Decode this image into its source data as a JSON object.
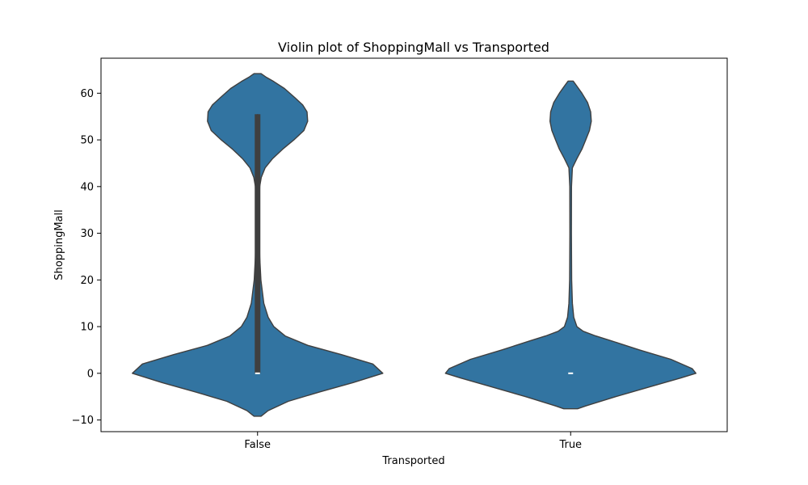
{
  "chart_data": {
    "type": "violin",
    "title": "Violin plot of ShoppingMall vs Transported",
    "xlabel": "Transported",
    "ylabel": "ShoppingMall",
    "categories": [
      "False",
      "True"
    ],
    "ylim": [
      -12.5,
      67.5
    ],
    "yticks": [
      -10,
      0,
      10,
      20,
      30,
      40,
      50,
      60
    ],
    "grid": false,
    "colors": {
      "violin_fill": "#3274a1",
      "outline": "#3f3f3f",
      "box": "#3f3f3f",
      "median": "#ffffff"
    },
    "violins": [
      {
        "category": "False",
        "min": -9.2,
        "max": 64.2,
        "q1": 0,
        "median": 0,
        "q3": 55.5,
        "density": [
          [
            -9.2,
            0.028
          ],
          [
            -8,
            0.085
          ],
          [
            -6,
            0.245
          ],
          [
            -4,
            0.495
          ],
          [
            -2,
            0.76
          ],
          [
            0,
            1.0
          ],
          [
            2,
            0.92
          ],
          [
            4,
            0.67
          ],
          [
            6,
            0.4
          ],
          [
            8,
            0.22
          ],
          [
            10,
            0.13
          ],
          [
            12,
            0.085
          ],
          [
            15,
            0.05
          ],
          [
            20,
            0.027
          ],
          [
            25,
            0.017
          ],
          [
            30,
            0.013
          ],
          [
            35,
            0.012
          ],
          [
            40,
            0.017
          ],
          [
            42,
            0.03
          ],
          [
            44,
            0.06
          ],
          [
            46,
            0.12
          ],
          [
            48,
            0.2
          ],
          [
            50,
            0.29
          ],
          [
            52,
            0.37
          ],
          [
            54,
            0.4
          ],
          [
            56,
            0.395
          ],
          [
            57.5,
            0.36
          ],
          [
            59,
            0.3
          ],
          [
            61,
            0.215
          ],
          [
            62.5,
            0.13
          ],
          [
            63.5,
            0.065
          ],
          [
            64.2,
            0.028
          ]
        ]
      },
      {
        "category": "True",
        "min": -7.6,
        "max": 62.6,
        "q1": 0,
        "median": 0,
        "q3": 0,
        "density": [
          [
            -7.6,
            0.055
          ],
          [
            -7,
            0.12
          ],
          [
            -5,
            0.36
          ],
          [
            -3,
            0.62
          ],
          [
            -1,
            0.88
          ],
          [
            0,
            1.0
          ],
          [
            1,
            0.97
          ],
          [
            3,
            0.8
          ],
          [
            5,
            0.55
          ],
          [
            7,
            0.32
          ],
          [
            8,
            0.2
          ],
          [
            9,
            0.1
          ],
          [
            10,
            0.05
          ],
          [
            12,
            0.025
          ],
          [
            15,
            0.014
          ],
          [
            20,
            0.008
          ],
          [
            30,
            0.006
          ],
          [
            40,
            0.007
          ],
          [
            44,
            0.014
          ],
          [
            46,
            0.05
          ],
          [
            48,
            0.09
          ],
          [
            50,
            0.12
          ],
          [
            52,
            0.15
          ],
          [
            54,
            0.165
          ],
          [
            56,
            0.16
          ],
          [
            58,
            0.135
          ],
          [
            60,
            0.09
          ],
          [
            61.5,
            0.05
          ],
          [
            62.6,
            0.02
          ]
        ]
      }
    ]
  }
}
